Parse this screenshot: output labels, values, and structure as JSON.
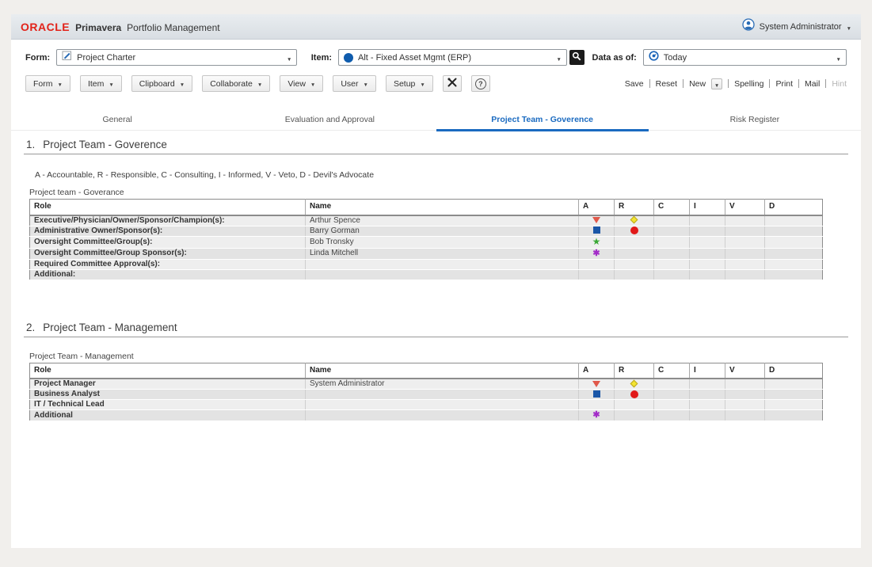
{
  "header": {
    "logo": "ORACLE",
    "brand": "Primavera",
    "product": "Portfolio Management",
    "user": "System Administrator"
  },
  "form_bar": {
    "form": {
      "label": "Form:",
      "value": "Project Charter"
    },
    "item": {
      "label": "Item:",
      "value": "Alt - Fixed Asset Mgmt (ERP)"
    },
    "data_as_of": {
      "label": "Data as of:",
      "value": "Today"
    }
  },
  "toolbar": {
    "menus": [
      "Form",
      "Item",
      "Clipboard",
      "Collaborate",
      "View",
      "User",
      "Setup"
    ],
    "actions": {
      "save": "Save",
      "reset": "Reset",
      "new": "New",
      "spelling": "Spelling",
      "print": "Print",
      "mail": "Mail",
      "hint": "Hint"
    }
  },
  "tabs": [
    {
      "label": "General",
      "active": false
    },
    {
      "label": "Evaluation and Approval",
      "active": false
    },
    {
      "label": "Project Team - Goverence",
      "active": true
    },
    {
      "label": "Risk Register",
      "active": false
    }
  ],
  "sections": [
    {
      "number": "1.",
      "title": "Project Team - Goverence",
      "legend": "A - Accountable, R - Responsible, C - Consulting, I - Informed, V - Veto, D - Devil's Advocate",
      "table_label": "Project team - Goverance",
      "headers": {
        "role": "Role",
        "name": "Name",
        "a": "A",
        "r": "R",
        "c": "C",
        "i": "I",
        "v": "V",
        "d": "D"
      },
      "rows": [
        {
          "role": "Executive/Physician/Owner/Sponsor/Champion(s):",
          "name": "Arthur Spence",
          "a": "triangle-down-orange",
          "r": "diamond-yellow"
        },
        {
          "role": "Administrative Owner/Sponsor(s):",
          "name": "Barry Gorman",
          "a": "square-blue",
          "r": "circle-red"
        },
        {
          "role": "Oversight Committee/Group(s):",
          "name": "Bob Tronsky",
          "a": "star-green"
        },
        {
          "role": "Oversight Committee/Group Sponsor(s):",
          "name": "Linda Mitchell",
          "a": "asterisk-purple"
        },
        {
          "role": "Required Committee Approval(s):",
          "name": ""
        },
        {
          "role": "Additional:",
          "name": ""
        }
      ]
    },
    {
      "number": "2.",
      "title": "Project Team - Management",
      "table_label": "Project Team - Management",
      "headers": {
        "role": "Role",
        "name": "Name",
        "a": "A",
        "r": "R",
        "c": "C",
        "i": "I",
        "v": "V",
        "d": "D"
      },
      "rows": [
        {
          "role": "Project Manager",
          "name": "System Administrator",
          "a": "triangle-down-orange",
          "r": "diamond-yellow"
        },
        {
          "role": "Business Analyst",
          "name": "",
          "a": "square-blue",
          "r": "circle-red"
        },
        {
          "role": "IT / Technical Lead",
          "name": ""
        },
        {
          "role": "Additional",
          "name": "",
          "a": "asterisk-purple"
        }
      ]
    }
  ],
  "colors": {
    "accent_blue": "#1a6ac0",
    "oracle_red": "#e2231a",
    "marker_orange": "#e0584a",
    "marker_yellow": "#f3e431",
    "marker_blue": "#1a56a7",
    "marker_red": "#e11a1a",
    "marker_green": "#3aa835",
    "marker_purple": "#a32cc8"
  }
}
